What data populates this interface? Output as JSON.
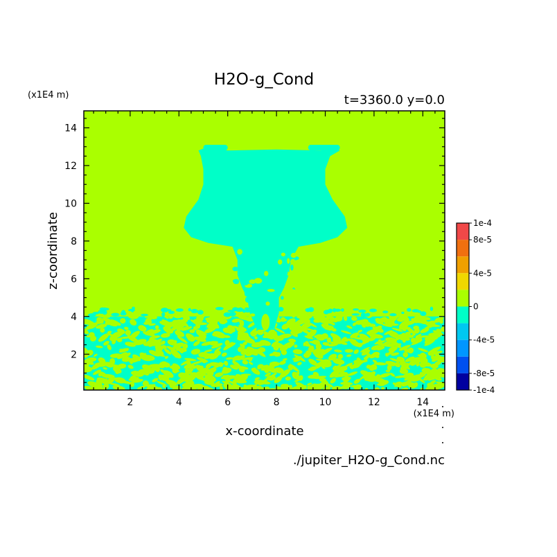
{
  "chart_data": {
    "type": "heatmap",
    "title": "H2O-g_Cond",
    "subtitle": "t=3360.0 y=0.0",
    "xlabel": "x-coordinate",
    "ylabel": "z-coordinate",
    "x_unit": "(x1E4 m)",
    "y_unit": "(x1E4 m)",
    "xlim": [
      0.1,
      14.9
    ],
    "ylim": [
      0.1,
      14.9
    ],
    "x_ticks": [
      2,
      4,
      6,
      8,
      10,
      12,
      14
    ],
    "y_ticks": [
      2,
      4,
      6,
      8,
      10,
      12,
      14
    ],
    "source_file": "./jupiter_H2O-g_Cond.nc",
    "colorbar": {
      "labels": [
        "1e-4",
        "8e-5",
        "4e-5",
        "0",
        "-4e-5",
        "-8e-5",
        "-1e-4"
      ],
      "levels": [
        {
          "from": 8e-05,
          "to": 0.0001,
          "color": "#f04848"
        },
        {
          "from": 6e-05,
          "to": 8e-05,
          "color": "#f07010"
        },
        {
          "from": 4e-05,
          "to": 6e-05,
          "color": "#f0a000"
        },
        {
          "from": 2e-05,
          "to": 4e-05,
          "color": "#f0d800"
        },
        {
          "from": 0,
          "to": 2e-05,
          "color": "#aaff00"
        },
        {
          "from": -2e-05,
          "to": 0,
          "color": "#00ffc8"
        },
        {
          "from": -4e-05,
          "to": -2e-05,
          "color": "#00c8f0"
        },
        {
          "from": -6e-05,
          "to": -4e-05,
          "color": "#0096ff"
        },
        {
          "from": -8e-05,
          "to": -6e-05,
          "color": "#0050f0"
        },
        {
          "from": -0.0001,
          "to": -8e-05,
          "color": "#0000a0"
        }
      ]
    },
    "background_color": "#aaff00",
    "cloud_color": "#00ffc8",
    "cloud_outline": [
      [
        5.2,
        13.0
      ],
      [
        5.5,
        12.9
      ],
      [
        6.0,
        12.8
      ],
      [
        8.0,
        12.85
      ],
      [
        9.8,
        12.8
      ],
      [
        10.4,
        12.9
      ],
      [
        10.6,
        12.8
      ],
      [
        10.2,
        12.5
      ],
      [
        10.0,
        11.8
      ],
      [
        10.0,
        11.0
      ],
      [
        10.3,
        10.2
      ],
      [
        10.8,
        9.3
      ],
      [
        10.9,
        8.7
      ],
      [
        10.5,
        8.2
      ],
      [
        9.8,
        7.9
      ],
      [
        8.9,
        7.7
      ],
      [
        8.6,
        7.0
      ],
      [
        8.5,
        6.2
      ],
      [
        8.3,
        5.5
      ],
      [
        8.1,
        5.0
      ],
      [
        8.1,
        4.2
      ],
      [
        7.9,
        3.3
      ],
      [
        7.2,
        3.3
      ],
      [
        6.9,
        4.2
      ],
      [
        6.8,
        5.0
      ],
      [
        6.6,
        5.5
      ],
      [
        6.4,
        6.2
      ],
      [
        6.4,
        7.0
      ],
      [
        6.2,
        7.7
      ],
      [
        5.2,
        7.9
      ],
      [
        4.5,
        8.2
      ],
      [
        4.2,
        8.7
      ],
      [
        4.3,
        9.3
      ],
      [
        4.8,
        10.2
      ],
      [
        5.0,
        11.0
      ],
      [
        5.0,
        11.8
      ],
      [
        4.9,
        12.5
      ],
      [
        4.8,
        12.8
      ]
    ],
    "cap_bars": [
      {
        "x": [
          5.0,
          6.0
        ],
        "z": [
          12.8,
          13.1
        ]
      },
      {
        "x": [
          9.3,
          10.6
        ],
        "z": [
          12.8,
          13.1
        ]
      }
    ],
    "mixed_layer_top": 4.0
  }
}
